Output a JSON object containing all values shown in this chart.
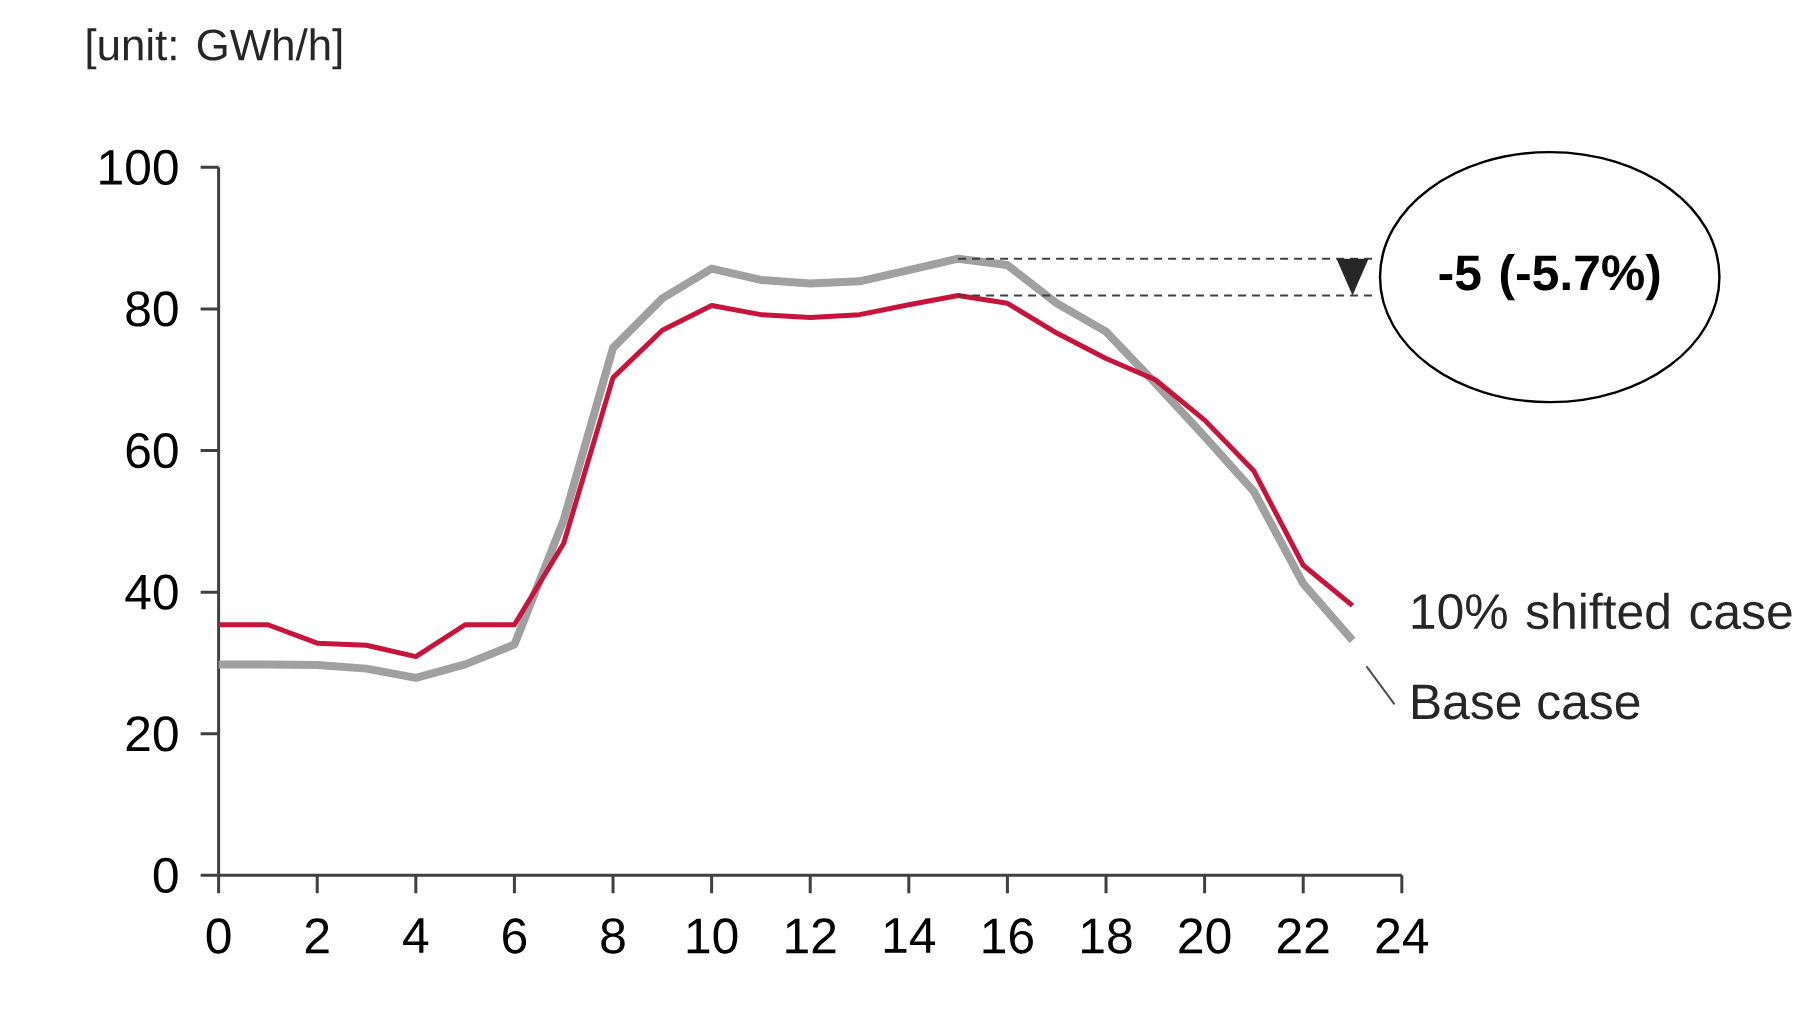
{
  "chart_data": {
    "type": "line",
    "ylabel": "[unit: GWh/h]",
    "x": [
      0,
      1,
      2,
      3,
      4,
      5,
      6,
      7,
      8,
      9,
      10,
      11,
      12,
      13,
      14,
      15,
      16,
      17,
      18,
      19,
      20,
      21,
      22,
      23
    ],
    "xlim": [
      0,
      24
    ],
    "xticks": [
      0,
      2,
      4,
      6,
      8,
      10,
      12,
      14,
      16,
      18,
      20,
      22,
      24
    ],
    "ylim": [
      0,
      100
    ],
    "yticks": [
      0,
      20,
      40,
      60,
      80,
      100
    ],
    "series": [
      {
        "name": "Base case",
        "color": "#a0a0a0",
        "values": [
          29.8,
          29.8,
          29.7,
          29.2,
          27.9,
          29.8,
          32.6,
          50.2,
          74.5,
          81.5,
          85.7,
          84.1,
          83.6,
          83.9,
          85.5,
          87.1,
          86.2,
          80.8,
          76.8,
          69.5,
          62.0,
          54.2,
          41.2,
          33.2
        ]
      },
      {
        "name": "10% shifted case",
        "color": "#c8143c",
        "values": [
          35.4,
          35.4,
          32.8,
          32.5,
          30.9,
          35.4,
          35.4,
          46.9,
          70.3,
          77.0,
          80.5,
          79.2,
          78.8,
          79.2,
          80.6,
          81.9,
          80.8,
          76.6,
          73.0,
          70.0,
          64.3,
          57.1,
          43.8,
          38.1
        ]
      }
    ],
    "ref_lines": [
      {
        "axis": "y",
        "value": 87.1,
        "color": "#404040",
        "line_style": "dashed"
      },
      {
        "axis": "y",
        "value": 81.9,
        "color": "#404040",
        "line_style": "dashed"
      }
    ],
    "annotations": [
      "**-5 (-5.7%)**"
    ]
  }
}
